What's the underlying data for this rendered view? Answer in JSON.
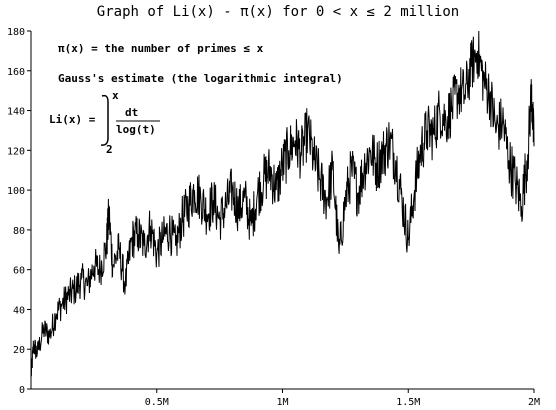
{
  "chart_data": {
    "type": "line",
    "title": "Graph of Li(x) - π(x) for  0 < x ≤ 2 million",
    "xlabel": "",
    "ylabel": "",
    "xlim": [
      0,
      2000000
    ],
    "ylim": [
      0,
      180
    ],
    "x_ticks": [
      {
        "value": 500000,
        "label": "0.5M"
      },
      {
        "value": 1000000,
        "label": "1M"
      },
      {
        "value": 1500000,
        "label": "1.5M"
      },
      {
        "value": 2000000,
        "label": "2M"
      }
    ],
    "y_ticks": [
      0,
      20,
      40,
      60,
      80,
      100,
      120,
      140,
      160,
      180
    ],
    "grid": false,
    "annotations": {
      "pi_def": "π(x) = the number of primes ≤ x",
      "gauss": "Gauss's estimate (the logarithmic integral)",
      "li_lhs": "Li(x) =",
      "upper_limit": "x",
      "lower_limit": "2",
      "numerator": "dt",
      "denominator": "log(t)"
    },
    "series": [
      {
        "values": [
          [
            0,
            6
          ],
          [
            10000,
            22
          ],
          [
            25000,
            18
          ],
          [
            50000,
            30
          ],
          [
            75000,
            27
          ],
          [
            100000,
            38
          ],
          [
            125000,
            43
          ],
          [
            150000,
            47
          ],
          [
            175000,
            50
          ],
          [
            200000,
            55
          ],
          [
            225000,
            52
          ],
          [
            250000,
            62
          ],
          [
            275000,
            60
          ],
          [
            300000,
            72
          ],
          [
            310000,
            88
          ],
          [
            325000,
            62
          ],
          [
            350000,
            70
          ],
          [
            375000,
            52
          ],
          [
            400000,
            75
          ],
          [
            425000,
            78
          ],
          [
            450000,
            72
          ],
          [
            475000,
            82
          ],
          [
            500000,
            68
          ],
          [
            525000,
            76
          ],
          [
            550000,
            80
          ],
          [
            575000,
            72
          ],
          [
            600000,
            85
          ],
          [
            625000,
            92
          ],
          [
            650000,
            100
          ],
          [
            675000,
            96
          ],
          [
            700000,
            88
          ],
          [
            725000,
            95
          ],
          [
            750000,
            85
          ],
          [
            775000,
            92
          ],
          [
            800000,
            100
          ],
          [
            825000,
            90
          ],
          [
            850000,
            96
          ],
          [
            875000,
            82
          ],
          [
            900000,
            98
          ],
          [
            925000,
            105
          ],
          [
            950000,
            110
          ],
          [
            975000,
            100
          ],
          [
            1000000,
            112
          ],
          [
            1025000,
            120
          ],
          [
            1050000,
            125
          ],
          [
            1075000,
            118
          ],
          [
            1100000,
            130
          ],
          [
            1125000,
            115
          ],
          [
            1150000,
            105
          ],
          [
            1175000,
            95
          ],
          [
            1200000,
            110
          ],
          [
            1225000,
            68
          ],
          [
            1250000,
            95
          ],
          [
            1275000,
            110
          ],
          [
            1300000,
            98
          ],
          [
            1325000,
            112
          ],
          [
            1350000,
            120
          ],
          [
            1375000,
            112
          ],
          [
            1400000,
            118
          ],
          [
            1425000,
            125
          ],
          [
            1450000,
            115
          ],
          [
            1475000,
            95
          ],
          [
            1500000,
            75
          ],
          [
            1525000,
            100
          ],
          [
            1550000,
            120
          ],
          [
            1575000,
            130
          ],
          [
            1600000,
            128
          ],
          [
            1625000,
            140
          ],
          [
            1650000,
            135
          ],
          [
            1675000,
            142
          ],
          [
            1700000,
            150
          ],
          [
            1725000,
            148
          ],
          [
            1750000,
            162
          ],
          [
            1775000,
            170
          ],
          [
            1800000,
            155
          ],
          [
            1825000,
            148
          ],
          [
            1850000,
            130
          ],
          [
            1875000,
            135
          ],
          [
            1900000,
            115
          ],
          [
            1925000,
            105
          ],
          [
            1950000,
            92
          ],
          [
            1975000,
            118
          ],
          [
            1990000,
            150
          ],
          [
            2000000,
            122
          ]
        ]
      }
    ]
  }
}
